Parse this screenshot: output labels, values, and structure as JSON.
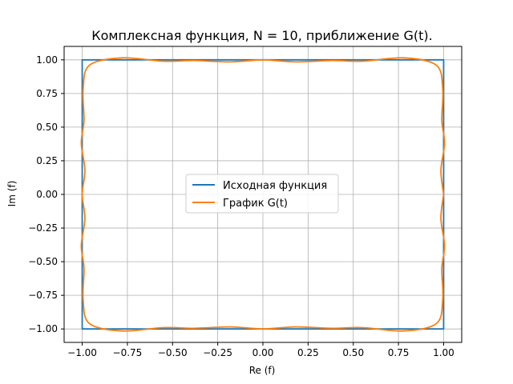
{
  "chart_data": {
    "type": "line",
    "title": "Комплексная функция, N = 10, приближение G(t).",
    "xlabel": "Re (f)",
    "ylabel": "Im (f)",
    "xlim": [
      -1.1,
      1.1
    ],
    "ylim": [
      -1.1,
      1.1
    ],
    "xticks": [
      -1.0,
      -0.75,
      -0.5,
      -0.25,
      0.0,
      0.25,
      0.5,
      0.75,
      1.0
    ],
    "yticks": [
      -1.0,
      -0.75,
      -0.5,
      -0.25,
      0.0,
      0.25,
      0.5,
      0.75,
      1.0
    ],
    "xtick_labels": [
      "−1.00",
      "−0.75",
      "−0.50",
      "−0.25",
      "0.00",
      "0.25",
      "0.50",
      "0.75",
      "1.00"
    ],
    "ytick_labels": [
      "−1.00",
      "−0.75",
      "−0.50",
      "−0.25",
      "0.00",
      "0.25",
      "0.50",
      "0.75",
      "1.00"
    ],
    "grid": true,
    "legend_position": "center",
    "series": [
      {
        "name": "Исходная функция",
        "color": "#1f77b4",
        "x": [
          1,
          1,
          -1,
          -1,
          1,
          1
        ],
        "y": [
          0,
          1,
          1,
          -1,
          -1,
          0
        ]
      },
      {
        "name": "График G(t)",
        "color": "#ff7f0e",
        "x": [
          1.0,
          0.985,
          1.005,
          0.99,
          0.995,
          0.96,
          0.78,
          0.55,
          0.38,
          0.18,
          0.0,
          -0.18,
          -0.38,
          -0.55,
          -0.78,
          -0.96,
          -0.995,
          -0.99,
          -1.005,
          -0.985,
          -1.0,
          -0.985,
          -1.005,
          -0.99,
          -0.995,
          -0.96,
          -0.78,
          -0.55,
          -0.38,
          -0.18,
          0.0,
          0.18,
          0.38,
          0.55,
          0.78,
          0.96,
          0.995,
          0.99,
          1.005,
          0.985,
          1.0
        ],
        "y": [
          0.0,
          0.18,
          0.38,
          0.55,
          0.78,
          0.96,
          1.015,
          0.99,
          0.995,
          0.985,
          1.0,
          0.985,
          0.995,
          0.99,
          1.015,
          0.96,
          0.78,
          0.55,
          0.38,
          0.18,
          0.0,
          -0.18,
          -0.38,
          -0.55,
          -0.78,
          -0.96,
          -1.015,
          -0.99,
          -0.995,
          -0.985,
          -1.0,
          -0.985,
          -0.995,
          -0.99,
          -1.015,
          -0.96,
          -0.78,
          -0.55,
          -0.38,
          -0.18,
          0.0
        ]
      }
    ]
  }
}
